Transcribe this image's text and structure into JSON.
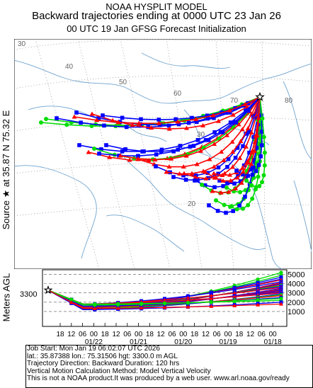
{
  "header": {
    "line1": "NOAA HYSPLIT MODEL",
    "line2": "Backward trajectories ending at 0000 UTC 23 Jan 26",
    "line3": "00 UTC 19 Jan    GFSG  Forecast Initialization"
  },
  "side_label": "Source ★ at   35.87 N   75.32 E",
  "map": {
    "lat_labels": [
      "30",
      "40",
      "50",
      "60",
      "70",
      "80",
      "30",
      "20"
    ],
    "source_marker": "star-icon"
  },
  "vertical_panel": {
    "axis_label": "Meters AGL",
    "source_height": "3300",
    "y_ticks": [
      "5000",
      "4000",
      "3000",
      "2000",
      "1000"
    ],
    "hour_ticks": [
      "18",
      "12",
      "06",
      "00",
      "18",
      "12",
      "06",
      "00",
      "18",
      "12",
      "06",
      "00",
      "18",
      "12",
      "06",
      "00",
      "18",
      "12",
      "06",
      "00"
    ],
    "date_ticks": [
      "01/22",
      "01/21",
      "01/20",
      "01/19",
      "01/18"
    ]
  },
  "info": {
    "line1": "Job Start: Mon Jan 19 06:02:07 UTC 2026",
    "line2": "lat.: 35.87388   lon.: 75.31506    hgt: 3300.0 m AGL",
    "line3": "Trajectory Direction: Backward       Duration: 120 hrs",
    "line4": "Vertical Motion Calculation Method: Model Vertical Velocity",
    "line5": "This is not a NOAA product.It was produced by a web user. www.arl.noaa.gov/ready"
  },
  "colors": {
    "red": "#ff0000",
    "blue": "#0000ff",
    "green": "#00dd00",
    "map_lines": "#6fa3cf",
    "dash": "#555555"
  }
}
